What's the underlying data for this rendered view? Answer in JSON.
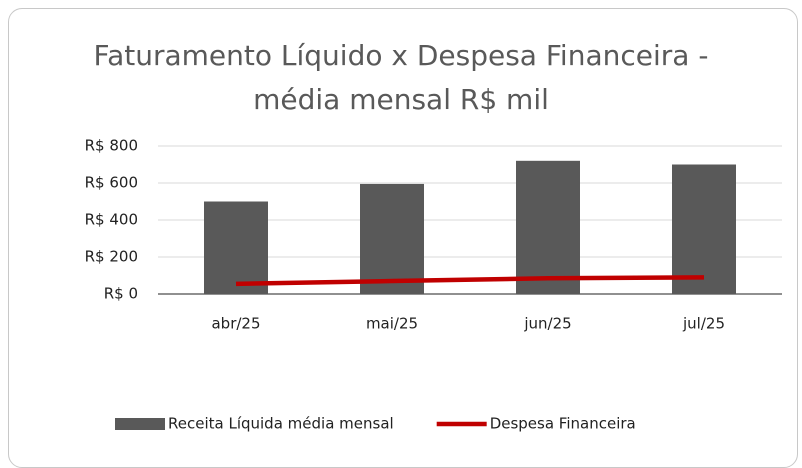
{
  "chart_data": {
    "type": "bar",
    "title": "Faturamento Líquido x Despesa Financeira - média mensal R$ mil",
    "categories": [
      "abr/25",
      "mai/25",
      "jun/25",
      "jul/25"
    ],
    "series": [
      {
        "name": "Receita Líquida média mensal",
        "type": "bar",
        "color": "#595959",
        "values": [
          500,
          595,
          720,
          700
        ]
      },
      {
        "name": "Despesa Financeira",
        "type": "line",
        "color": "#c00000",
        "values": [
          55,
          70,
          85,
          90
        ]
      }
    ],
    "ylim": [
      0,
      800
    ],
    "yticks": [
      {
        "value": 0,
        "label": "R$ 0"
      },
      {
        "value": 200,
        "label": "R$ 200"
      },
      {
        "value": 400,
        "label": "R$ 400"
      },
      {
        "value": 600,
        "label": "R$ 600"
      },
      {
        "value": 800,
        "label": "R$ 800"
      }
    ],
    "grid": true,
    "legend": "bottom"
  }
}
